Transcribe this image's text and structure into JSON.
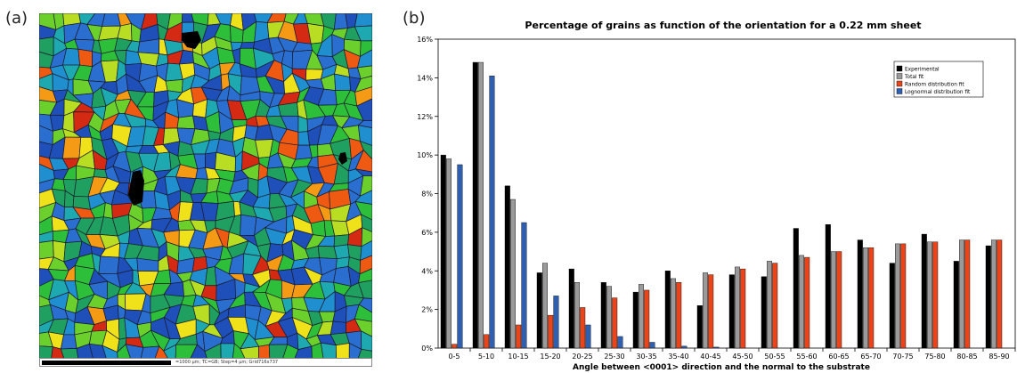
{
  "panels": {
    "a": "(a)",
    "b": "(b)"
  },
  "micrograph": {
    "scale_text": "=1000 µm; TC=GB; Step=4 µm; Grid716x737",
    "colors": [
      "#1f4fb8",
      "#2a6fd0",
      "#1f8fd0",
      "#1ea8b0",
      "#1fa060",
      "#2ebf3a",
      "#6cd02c",
      "#b8dd22",
      "#f0e21a",
      "#f59a14",
      "#ee5a12",
      "#d42a14"
    ]
  },
  "chart_data": {
    "type": "bar",
    "title": "Percentage of grains as function of the orientation for a 0.22 mm sheet",
    "xlabel": "Angle between <0001> direction and the normal to the substrate",
    "ylabel": "",
    "ylim": [
      0,
      16
    ],
    "yticks": [
      "0%",
      "2%",
      "4%",
      "6%",
      "8%",
      "10%",
      "12%",
      "14%",
      "16%"
    ],
    "grid": false,
    "legend_position": "top-right",
    "categories": [
      "0-5",
      "5-10",
      "10-15",
      "15-20",
      "20-25",
      "25-30",
      "30-35",
      "35-40",
      "40-45",
      "45-50",
      "50-55",
      "55-60",
      "60-65",
      "65-70",
      "70-75",
      "75-80",
      "80-85",
      "85-90"
    ],
    "series": [
      {
        "name": "Experimental",
        "color": "#000000",
        "values": [
          10.0,
          14.8,
          8.4,
          3.9,
          4.1,
          3.4,
          2.9,
          4.0,
          2.2,
          3.8,
          3.7,
          6.2,
          6.4,
          5.6,
          4.4,
          5.9,
          4.5,
          5.3
        ]
      },
      {
        "name": "Total fit",
        "color": "#9a9a9a",
        "values": [
          9.8,
          14.8,
          7.7,
          4.4,
          3.4,
          3.2,
          3.3,
          3.6,
          3.9,
          4.2,
          4.5,
          4.8,
          5.0,
          5.2,
          5.4,
          5.5,
          5.6,
          5.6
        ]
      },
      {
        "name": "Random distribution fit",
        "color": "#e8451c",
        "values": [
          0.2,
          0.7,
          1.2,
          1.7,
          2.1,
          2.6,
          3.0,
          3.4,
          3.8,
          4.1,
          4.4,
          4.7,
          5.0,
          5.2,
          5.4,
          5.5,
          5.6,
          5.6
        ]
      },
      {
        "name": "Lognormal distribution fit",
        "color": "#2f5fb0",
        "values": [
          9.5,
          14.1,
          6.5,
          2.7,
          1.2,
          0.6,
          0.3,
          0.1,
          0.05,
          0.0,
          0.0,
          0.0,
          0.0,
          0.0,
          0.0,
          0.0,
          0.0,
          0.0
        ]
      }
    ]
  }
}
